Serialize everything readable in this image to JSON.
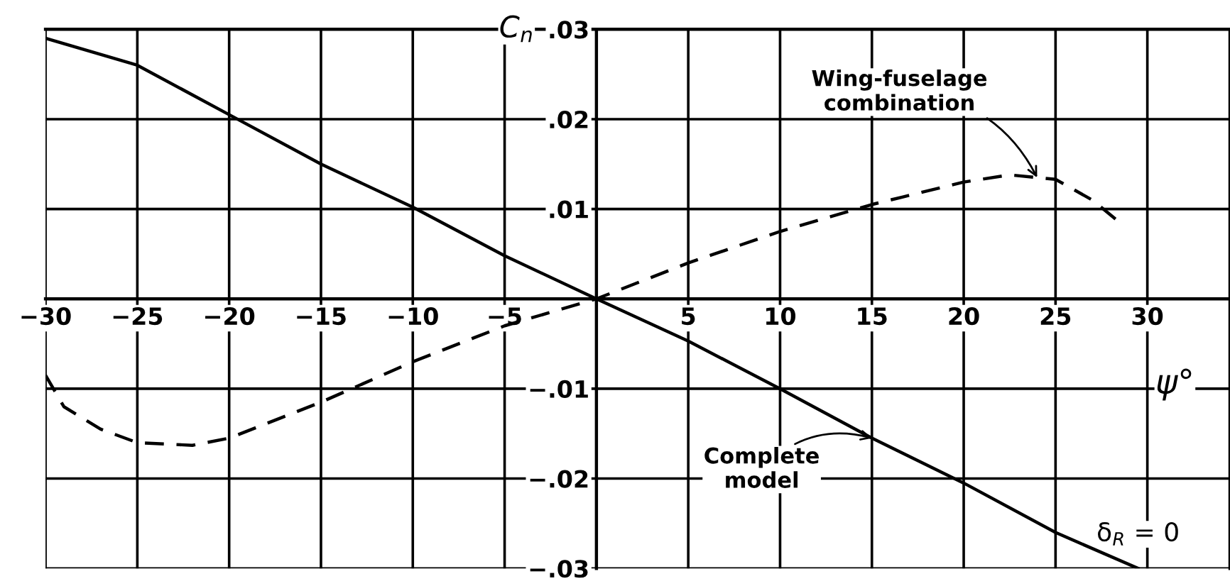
{
  "chart_data": {
    "type": "line",
    "xlabel": "ψ°",
    "ylabel": "C$_{n}$",
    "xlim": [
      -30,
      34.5
    ],
    "ylim": [
      -0.03,
      0.03
    ],
    "xticks": [
      {
        "value": -30,
        "label": "−30"
      },
      {
        "value": -25,
        "label": "−25"
      },
      {
        "value": -20,
        "label": "−20"
      },
      {
        "value": -15,
        "label": "−15"
      },
      {
        "value": -10,
        "label": "−10"
      },
      {
        "value": -5,
        "label": "−5"
      },
      {
        "value": 0,
        "label": null
      },
      5,
      10,
      15,
      20,
      25,
      30
    ],
    "yticks": [
      {
        "value": -0.03,
        "label": "−.03"
      },
      {
        "value": -0.02,
        "label": "−.02"
      },
      {
        "value": -0.01,
        "label": "−.01"
      },
      {
        "value": 0,
        "label": null
      },
      {
        "value": 0.01,
        "label": ".01"
      },
      {
        "value": 0.02,
        "label": ".02"
      },
      {
        "value": 0.03,
        "label": ".03"
      }
    ],
    "grid": true,
    "series": [
      {
        "color": "#000000",
        "line_style": "solid",
        "x": [
          -30,
          -25,
          -20,
          -15,
          -10,
          -5,
          0,
          5,
          10,
          15,
          20,
          25,
          29.5
        ],
        "values": [
          0.029,
          0.026,
          0.0205,
          0.015,
          0.0102,
          0.0048,
          0,
          -0.0047,
          -0.01,
          -0.0155,
          -0.0205,
          -0.026,
          -0.03
        ]
      },
      {
        "color": "#000000",
        "line_style": "dashed",
        "x": [
          -30,
          -29,
          -27,
          -25,
          -22,
          -20,
          -15,
          -10,
          -5,
          0,
          5,
          10,
          15,
          20,
          22.5,
          25,
          27,
          28.5
        ],
        "values": [
          -0.0085,
          -0.012,
          -0.0145,
          -0.016,
          -0.0163,
          -0.0155,
          -0.0115,
          -0.007,
          -0.003,
          0,
          0.004,
          0.0075,
          0.0105,
          0.013,
          0.0138,
          0.0133,
          0.011,
          0.0085
        ]
      }
    ],
    "annotations": [
      {
        "text": "Wing-fuselage\ncombination",
        "x": 24,
        "y": 0.0135
      },
      {
        "text": "Complete\nmodel",
        "x": 15,
        "y": -0.0155
      },
      "δ$_{R}$ = 0"
    ]
  }
}
